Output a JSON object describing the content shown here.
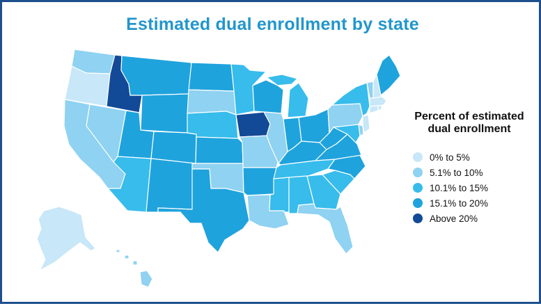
{
  "title": "Estimated dual enrollment by state",
  "legend": {
    "title_line1": "Percent of estimated",
    "title_line2": "dual enrollment",
    "items": [
      {
        "label": "0% to 5%",
        "color": "#c8e7f8"
      },
      {
        "label": "5.1% to 10%",
        "color": "#8fd2f1"
      },
      {
        "label": "10.1% to 15%",
        "color": "#37bcec"
      },
      {
        "label": "15.1% to 20%",
        "color": "#1fa3dd"
      },
      {
        "label": "Above 20%",
        "color": "#134a97"
      }
    ]
  },
  "states": [
    {
      "state": "Washington",
      "category": "5.1% to 10%"
    },
    {
      "state": "Oregon",
      "category": "0% to 5%"
    },
    {
      "state": "California",
      "category": "5.1% to 10%"
    },
    {
      "state": "Nevada",
      "category": "5.1% to 10%"
    },
    {
      "state": "Idaho",
      "category": "Above 20%"
    },
    {
      "state": "Montana",
      "category": "15.1% to 20%"
    },
    {
      "state": "Wyoming",
      "category": "15.1% to 20%"
    },
    {
      "state": "Utah",
      "category": "15.1% to 20%"
    },
    {
      "state": "Arizona",
      "category": "10.1% to 15%"
    },
    {
      "state": "Colorado",
      "category": "15.1% to 20%"
    },
    {
      "state": "New Mexico",
      "category": "15.1% to 20%"
    },
    {
      "state": "North Dakota",
      "category": "15.1% to 20%"
    },
    {
      "state": "South Dakota",
      "category": "5.1% to 10%"
    },
    {
      "state": "Nebraska",
      "category": "10.1% to 15%"
    },
    {
      "state": "Kansas",
      "category": "15.1% to 20%"
    },
    {
      "state": "Oklahoma",
      "category": "5.1% to 10%"
    },
    {
      "state": "Texas",
      "category": "15.1% to 20%"
    },
    {
      "state": "Minnesota",
      "category": "10.1% to 15%"
    },
    {
      "state": "Iowa",
      "category": "Above 20%"
    },
    {
      "state": "Missouri",
      "category": "5.1% to 10%"
    },
    {
      "state": "Arkansas",
      "category": "15.1% to 20%"
    },
    {
      "state": "Louisiana",
      "category": "5.1% to 10%"
    },
    {
      "state": "Wisconsin",
      "category": "15.1% to 20%"
    },
    {
      "state": "Illinois",
      "category": "5.1% to 10%"
    },
    {
      "state": "Michigan",
      "category": "10.1% to 15%"
    },
    {
      "state": "Indiana",
      "category": "15.1% to 20%"
    },
    {
      "state": "Ohio",
      "category": "15.1% to 20%"
    },
    {
      "state": "Kentucky",
      "category": "15.1% to 20%"
    },
    {
      "state": "Tennessee",
      "category": "10.1% to 15%"
    },
    {
      "state": "Mississippi",
      "category": "10.1% to 15%"
    },
    {
      "state": "Alabama",
      "category": "10.1% to 15%"
    },
    {
      "state": "Georgia",
      "category": "10.1% to 15%"
    },
    {
      "state": "Florida",
      "category": "5.1% to 10%"
    },
    {
      "state": "South Carolina",
      "category": "10.1% to 15%"
    },
    {
      "state": "North Carolina",
      "category": "15.1% to 20%"
    },
    {
      "state": "Virginia",
      "category": "15.1% to 20%"
    },
    {
      "state": "West Virginia",
      "category": "15.1% to 20%"
    },
    {
      "state": "Pennsylvania",
      "category": "5.1% to 10%"
    },
    {
      "state": "New York",
      "category": "10.1% to 15%"
    },
    {
      "state": "Maryland",
      "category": "10.1% to 15%"
    },
    {
      "state": "Delaware",
      "category": "5.1% to 10%"
    },
    {
      "state": "New Jersey",
      "category": "0% to 5%"
    },
    {
      "state": "Connecticut",
      "category": "0% to 5%"
    },
    {
      "state": "Rhode Island",
      "category": "0% to 5%"
    },
    {
      "state": "Massachusetts",
      "category": "0% to 5%"
    },
    {
      "state": "Vermont",
      "category": "5.1% to 10%"
    },
    {
      "state": "New Hampshire",
      "category": "0% to 5%"
    },
    {
      "state": "Maine",
      "category": "15.1% to 20%"
    },
    {
      "state": "Alaska",
      "category": "0% to 5%"
    },
    {
      "state": "Hawaii",
      "category": "5.1% to 10%"
    }
  ]
}
